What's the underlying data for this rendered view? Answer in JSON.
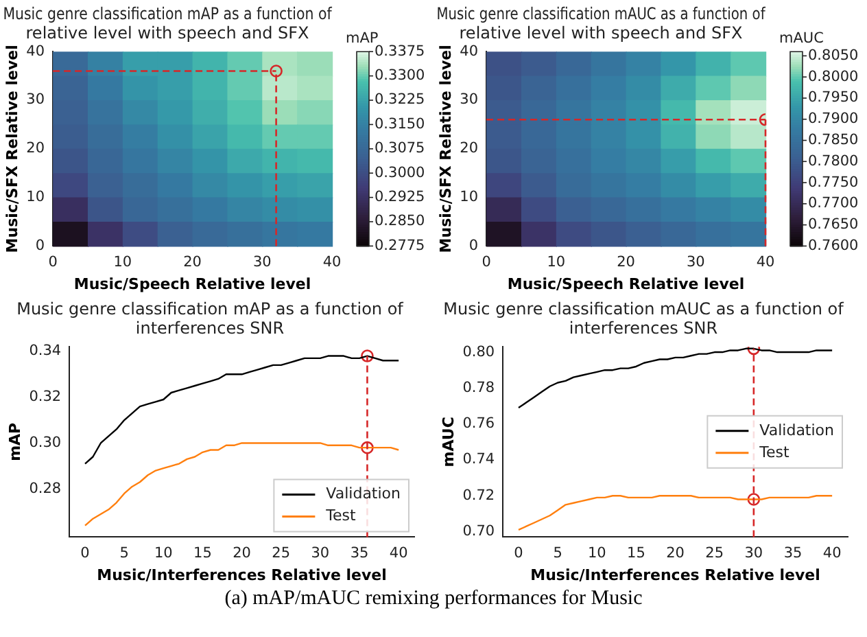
{
  "chart_data": [
    {
      "type": "heatmap",
      "title": "Music genre classification mAP as a function of relative level with speech and SFX",
      "xlabel": "Music/Speech Relative level",
      "ylabel": "Music/SFX Relative level",
      "clabel": "mAP",
      "xlim": [
        0,
        40
      ],
      "ylim": [
        0,
        40
      ],
      "xticks": [
        0,
        10,
        20,
        30,
        40
      ],
      "yticks": [
        0,
        10,
        20,
        30,
        40
      ],
      "cells": [
        [
          0.308,
          0.315,
          0.322,
          0.322,
          0.326,
          0.33,
          0.334,
          0.333
        ],
        [
          0.306,
          0.313,
          0.32,
          0.322,
          0.326,
          0.33,
          0.335,
          0.334
        ],
        [
          0.305,
          0.311,
          0.317,
          0.321,
          0.325,
          0.329,
          0.333,
          0.332
        ],
        [
          0.304,
          0.309,
          0.314,
          0.319,
          0.323,
          0.327,
          0.33,
          0.33
        ],
        [
          0.302,
          0.307,
          0.312,
          0.316,
          0.32,
          0.324,
          0.326,
          0.327
        ],
        [
          0.299,
          0.305,
          0.309,
          0.313,
          0.317,
          0.32,
          0.322,
          0.323
        ],
        [
          0.292,
          0.302,
          0.307,
          0.31,
          0.313,
          0.316,
          0.318,
          0.319
        ],
        [
          0.282,
          0.293,
          0.3,
          0.305,
          0.308,
          0.31,
          0.312,
          0.313
        ]
      ],
      "clim": [
        0.2775,
        0.3375
      ],
      "cticks": [
        {
          "value": 0.2775,
          "label": "0.2775"
        },
        {
          "value": 0.285,
          "label": "0.2850"
        },
        {
          "value": 0.2925,
          "label": "0.2925"
        },
        {
          "value": 0.3,
          "label": "0.3000"
        },
        {
          "value": 0.3075,
          "label": "0.3075"
        },
        {
          "value": 0.315,
          "label": "0.3150"
        },
        {
          "value": 0.3225,
          "label": "0.3225"
        },
        {
          "value": 0.33,
          "label": "0.3300"
        },
        {
          "value": 0.3375,
          "label": "0.3375"
        }
      ],
      "ref_lines": [
        {
          "axis": "x",
          "value": 32,
          "color": "#d62728",
          "line_style": "dashed"
        },
        {
          "axis": "y",
          "value": 36,
          "color": "#d62728",
          "line_style": "dashed"
        }
      ],
      "series": [
        {
          "type": "scatter",
          "color": "#d62728",
          "x": [
            32
          ],
          "values": [
            36
          ],
          "marker": "circle"
        }
      ]
    },
    {
      "type": "heatmap",
      "title": "Music genre classification mAUC as a function of relative level with speech and SFX",
      "xlabel": "Music/Speech Relative level",
      "ylabel": "Music/SFX Relative level",
      "clabel": "mAUC",
      "xlim": [
        0,
        40
      ],
      "ylim": [
        0,
        40
      ],
      "xticks": [
        0,
        10,
        20,
        30,
        40
      ],
      "yticks": [
        0,
        10,
        20,
        30,
        40
      ],
      "cells": [
        [
          0.778,
          0.78,
          0.783,
          0.786,
          0.789,
          0.793,
          0.797,
          0.8
        ],
        [
          0.779,
          0.782,
          0.785,
          0.788,
          0.791,
          0.796,
          0.8,
          0.802
        ],
        [
          0.78,
          0.783,
          0.786,
          0.789,
          0.792,
          0.798,
          0.803,
          0.805
        ],
        [
          0.78,
          0.783,
          0.786,
          0.789,
          0.792,
          0.797,
          0.802,
          0.804
        ],
        [
          0.779,
          0.782,
          0.785,
          0.788,
          0.79,
          0.794,
          0.798,
          0.8
        ],
        [
          0.776,
          0.78,
          0.784,
          0.786,
          0.788,
          0.791,
          0.794,
          0.796
        ],
        [
          0.77,
          0.777,
          0.781,
          0.783,
          0.785,
          0.787,
          0.789,
          0.791
        ],
        [
          0.764,
          0.772,
          0.777,
          0.779,
          0.781,
          0.783,
          0.785,
          0.786
        ]
      ],
      "clim": [
        0.76,
        0.806
      ],
      "cticks": [
        {
          "value": 0.76,
          "label": "0.7600"
        },
        {
          "value": 0.765,
          "label": "0.7650"
        },
        {
          "value": 0.77,
          "label": "0.7700"
        },
        {
          "value": 0.775,
          "label": "0.7750"
        },
        {
          "value": 0.78,
          "label": "0.7800"
        },
        {
          "value": 0.785,
          "label": "0.7850"
        },
        {
          "value": 0.79,
          "label": "0.7900"
        },
        {
          "value": 0.795,
          "label": "0.7950"
        },
        {
          "value": 0.8,
          "label": "0.8000"
        },
        {
          "value": 0.805,
          "label": "0.8050"
        }
      ],
      "ref_lines": [
        {
          "axis": "x",
          "value": 40,
          "color": "#d62728",
          "line_style": "dashed"
        },
        {
          "axis": "y",
          "value": 26,
          "color": "#d62728",
          "line_style": "dashed"
        }
      ],
      "series": [
        {
          "type": "scatter",
          "color": "#d62728",
          "x": [
            40
          ],
          "values": [
            26
          ],
          "marker": "circle"
        }
      ]
    },
    {
      "type": "line",
      "title": "Music genre classification mAP as a function of interferences SNR",
      "xlabel": "Music/Interferences Relative level",
      "ylabel": "mAP",
      "x": [
        0,
        1,
        2,
        3,
        4,
        5,
        6,
        7,
        8,
        9,
        10,
        11,
        12,
        13,
        14,
        15,
        16,
        17,
        18,
        19,
        20,
        21,
        22,
        23,
        24,
        25,
        26,
        27,
        28,
        29,
        30,
        31,
        32,
        33,
        34,
        35,
        36,
        37,
        38,
        39,
        40
      ],
      "xlim": [
        -2,
        42
      ],
      "xticks": [
        0,
        5,
        10,
        15,
        20,
        25,
        30,
        35,
        40
      ],
      "ylim": [
        0.259,
        0.342
      ],
      "yticks": [
        {
          "value": 0.28,
          "label": "0.28"
        },
        {
          "value": 0.3,
          "label": "0.30"
        },
        {
          "value": 0.32,
          "label": "0.32"
        },
        {
          "value": 0.34,
          "label": "0.34"
        }
      ],
      "legend": "bottom right",
      "series": [
        {
          "name": "Validation",
          "color": "#000000",
          "values": [
            0.291,
            0.294,
            0.3,
            0.303,
            0.306,
            0.31,
            0.313,
            0.316,
            0.317,
            0.318,
            0.319,
            0.322,
            0.323,
            0.324,
            0.325,
            0.326,
            0.327,
            0.328,
            0.33,
            0.33,
            0.33,
            0.331,
            0.332,
            0.333,
            0.334,
            0.334,
            0.335,
            0.336,
            0.337,
            0.337,
            0.337,
            0.338,
            0.338,
            0.338,
            0.337,
            0.337,
            0.338,
            0.337,
            0.336,
            0.336,
            0.336
          ]
        },
        {
          "name": "Test",
          "color": "#ff7f0e",
          "values": [
            0.264,
            0.267,
            0.269,
            0.271,
            0.274,
            0.278,
            0.281,
            0.283,
            0.286,
            0.288,
            0.289,
            0.29,
            0.291,
            0.293,
            0.294,
            0.296,
            0.297,
            0.297,
            0.299,
            0.299,
            0.3,
            0.3,
            0.3,
            0.3,
            0.3,
            0.3,
            0.3,
            0.3,
            0.3,
            0.3,
            0.3,
            0.299,
            0.299,
            0.299,
            0.299,
            0.298,
            0.298,
            0.298,
            0.298,
            0.298,
            0.297
          ]
        },
        {
          "type": "scatter",
          "color": "#d62728",
          "x": [
            36,
            36
          ],
          "values": [
            0.338,
            0.298
          ],
          "marker": "circle"
        }
      ],
      "ref_lines": [
        {
          "axis": "x",
          "value": 36,
          "color": "#d62728",
          "line_style": "dashed"
        }
      ]
    },
    {
      "type": "line",
      "title": "Music genre classification mAUC as a function of interferences SNR",
      "xlabel": "Music/Interferences Relative level",
      "ylabel": "mAUC",
      "x": [
        0,
        1,
        2,
        3,
        4,
        5,
        6,
        7,
        8,
        9,
        10,
        11,
        12,
        13,
        14,
        15,
        16,
        17,
        18,
        19,
        20,
        21,
        22,
        23,
        24,
        25,
        26,
        27,
        28,
        29,
        30,
        31,
        32,
        33,
        34,
        35,
        36,
        37,
        38,
        39,
        40
      ],
      "xlim": [
        -2,
        42
      ],
      "xticks": [
        0,
        5,
        10,
        15,
        20,
        25,
        30,
        35,
        40
      ],
      "ylim": [
        0.697,
        0.803
      ],
      "yticks": [
        {
          "value": 0.7,
          "label": "0.70"
        },
        {
          "value": 0.72,
          "label": "0.72"
        },
        {
          "value": 0.74,
          "label": "0.74"
        },
        {
          "value": 0.76,
          "label": "0.76"
        },
        {
          "value": 0.78,
          "label": "0.78"
        },
        {
          "value": 0.8,
          "label": "0.80"
        }
      ],
      "legend": "right",
      "series": [
        {
          "name": "Validation",
          "color": "#000000",
          "values": [
            0.769,
            0.772,
            0.775,
            0.778,
            0.781,
            0.783,
            0.784,
            0.786,
            0.787,
            0.788,
            0.789,
            0.79,
            0.79,
            0.791,
            0.791,
            0.792,
            0.794,
            0.795,
            0.796,
            0.796,
            0.797,
            0.797,
            0.798,
            0.799,
            0.799,
            0.8,
            0.8,
            0.801,
            0.801,
            0.802,
            0.802,
            0.801,
            0.801,
            0.8,
            0.8,
            0.8,
            0.8,
            0.8,
            0.801,
            0.801,
            0.801
          ]
        },
        {
          "name": "Test",
          "color": "#ff7f0e",
          "values": [
            0.701,
            0.703,
            0.705,
            0.707,
            0.709,
            0.712,
            0.715,
            0.716,
            0.717,
            0.718,
            0.719,
            0.719,
            0.72,
            0.72,
            0.719,
            0.719,
            0.719,
            0.719,
            0.72,
            0.72,
            0.72,
            0.72,
            0.72,
            0.719,
            0.719,
            0.719,
            0.719,
            0.719,
            0.718,
            0.718,
            0.718,
            0.718,
            0.719,
            0.719,
            0.719,
            0.719,
            0.719,
            0.719,
            0.72,
            0.72,
            0.72
          ]
        },
        {
          "type": "scatter",
          "color": "#d62728",
          "x": [
            30,
            30
          ],
          "values": [
            0.802,
            0.718
          ],
          "marker": "circle"
        }
      ],
      "ref_lines": [
        {
          "axis": "x",
          "value": 30,
          "color": "#d62728",
          "line_style": "dashed"
        }
      ],
      "annotations": [
        "(a) mAP/mAUC remixing performances for Music"
      ]
    }
  ]
}
